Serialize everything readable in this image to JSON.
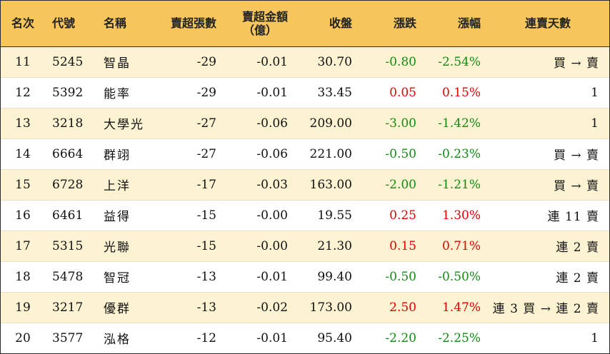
{
  "headers": {
    "rank": "名次",
    "code": "代號",
    "name": "名稱",
    "net_sell_lots": "賣超張數",
    "net_sell_amount_line1": "賣超金額",
    "net_sell_amount_line2": "（億）",
    "close": "收盤",
    "change": "漲跌",
    "change_pct": "漲幅",
    "streak": "連賣天數"
  },
  "rows": [
    {
      "rank": "11",
      "code": "5245",
      "name": "智晶",
      "lots": "-29",
      "amount": "-0.01",
      "close": "30.70",
      "change": "-0.80",
      "pct": "-2.54%",
      "streak": "買 → 賣",
      "dir": "down"
    },
    {
      "rank": "12",
      "code": "5392",
      "name": "能率",
      "lots": "-29",
      "amount": "-0.01",
      "close": "33.45",
      "change": "0.05",
      "pct": "0.15%",
      "streak": "1",
      "dir": "up"
    },
    {
      "rank": "13",
      "code": "3218",
      "name": "大學光",
      "lots": "-27",
      "amount": "-0.06",
      "close": "209.00",
      "change": "-3.00",
      "pct": "-1.42%",
      "streak": "1",
      "dir": "down"
    },
    {
      "rank": "14",
      "code": "6664",
      "name": "群翊",
      "lots": "-27",
      "amount": "-0.06",
      "close": "221.00",
      "change": "-0.50",
      "pct": "-0.23%",
      "streak": "買 → 賣",
      "dir": "down"
    },
    {
      "rank": "15",
      "code": "6728",
      "name": "上洋",
      "lots": "-17",
      "amount": "-0.03",
      "close": "163.00",
      "change": "-2.00",
      "pct": "-1.21%",
      "streak": "買 → 賣",
      "dir": "down"
    },
    {
      "rank": "16",
      "code": "6461",
      "name": "益得",
      "lots": "-15",
      "amount": "-0.00",
      "close": "19.55",
      "change": "0.25",
      "pct": "1.30%",
      "streak": "連 11 賣",
      "dir": "up"
    },
    {
      "rank": "17",
      "code": "5315",
      "name": "光聯",
      "lots": "-15",
      "amount": "-0.00",
      "close": "21.30",
      "change": "0.15",
      "pct": "0.71%",
      "streak": "連 2 賣",
      "dir": "up"
    },
    {
      "rank": "18",
      "code": "5478",
      "name": "智冠",
      "lots": "-13",
      "amount": "-0.01",
      "close": "99.40",
      "change": "-0.50",
      "pct": "-0.50%",
      "streak": "連 2 賣",
      "dir": "down"
    },
    {
      "rank": "19",
      "code": "3217",
      "name": "優群",
      "lots": "-13",
      "amount": "-0.02",
      "close": "173.00",
      "change": "2.50",
      "pct": "1.47%",
      "streak": "連 3 買 → 連 2 賣",
      "dir": "up"
    },
    {
      "rank": "20",
      "code": "3577",
      "name": "泓格",
      "lots": "-12",
      "amount": "-0.01",
      "close": "95.40",
      "change": "-2.20",
      "pct": "-2.25%",
      "streak": "1",
      "dir": "down"
    }
  ],
  "colors": {
    "header_bg": "#f6c55c",
    "stripe_bg": "#fdf2d1",
    "up": "#e00000",
    "down": "#138a13"
  }
}
